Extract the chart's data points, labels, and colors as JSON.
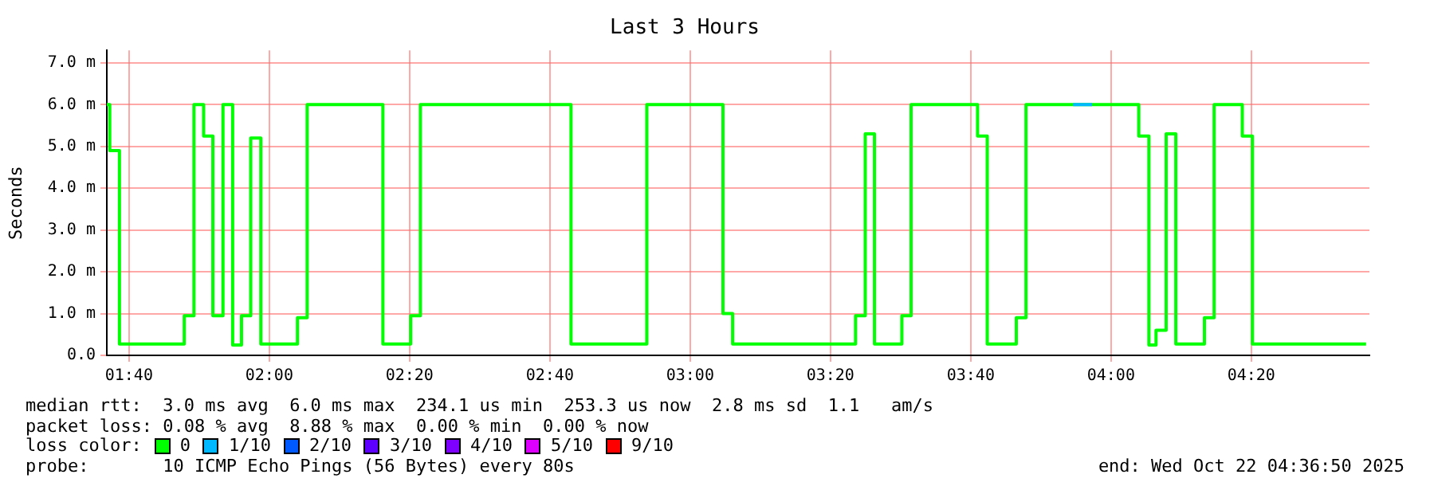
{
  "chart_data": {
    "type": "step",
    "title": "Last 3 Hours",
    "ylabel": "Seconds",
    "legend_title": "loss color:",
    "legend": "bottom",
    "grid": true,
    "line_style": "solid",
    "marker": "none",
    "xlim": [
      1.614,
      4.614
    ],
    "xticks": [
      {
        "value": 1.6667,
        "label": "01:40"
      },
      {
        "value": 2.0,
        "label": "02:00"
      },
      {
        "value": 2.3333,
        "label": "02:20"
      },
      {
        "value": 2.6667,
        "label": "02:40"
      },
      {
        "value": 3.0,
        "label": "03:00"
      },
      {
        "value": 3.3333,
        "label": "03:20"
      },
      {
        "value": 3.6667,
        "label": "03:40"
      },
      {
        "value": 4.0,
        "label": "04:00"
      },
      {
        "value": 4.3333,
        "label": "04:20"
      }
    ],
    "ylim": [
      0,
      7.3
    ],
    "yticks": [
      {
        "value": 0,
        "label": "0.0"
      },
      {
        "value": 1,
        "label": "1.0 m"
      },
      {
        "value": 2,
        "label": "2.0 m"
      },
      {
        "value": 3,
        "label": "3.0 m"
      },
      {
        "value": 4,
        "label": "4.0 m"
      },
      {
        "value": 5,
        "label": "5.0 m"
      },
      {
        "value": 6,
        "label": "6.0 m"
      },
      {
        "value": 7,
        "label": "7.0 m"
      }
    ],
    "series": [
      {
        "name": "0",
        "color": "#00ff00",
        "x": [
          1.614,
          1.621,
          1.644,
          1.798,
          1.821,
          1.844,
          1.866,
          1.89,
          1.913,
          1.934,
          1.956,
          1.98,
          2.067,
          2.09,
          2.27,
          2.336,
          2.359,
          2.717,
          2.897,
          3.078,
          3.101,
          3.393,
          3.416,
          3.438,
          3.503,
          3.525,
          3.683,
          3.706,
          3.775,
          3.798,
          3.91,
          3.955,
          4.066,
          4.09,
          4.107,
          4.131,
          4.154,
          4.222,
          4.245,
          4.312,
          4.336,
          4.606
        ],
        "values": [
          6.0,
          4.9,
          0.27,
          0.95,
          6.0,
          5.25,
          0.95,
          6.0,
          0.25,
          0.95,
          5.2,
          0.27,
          0.9,
          6.0,
          0.27,
          0.95,
          6.0,
          0.27,
          6.0,
          1.0,
          0.27,
          0.95,
          5.3,
          0.27,
          0.95,
          6.0,
          5.25,
          0.27,
          0.9,
          6.0,
          6.0,
          6.0,
          5.25,
          0.25,
          0.6,
          5.3,
          0.27,
          0.9,
          6.0,
          5.25,
          0.27,
          0.27
        ]
      },
      {
        "name": "1/10",
        "color": "#00b8ff",
        "x": [
          3.91,
          3.955
        ],
        "values": [
          6.0,
          6.0
        ]
      },
      {
        "name": "2/10",
        "color": "#0059ff"
      },
      {
        "name": "3/10",
        "color": "#5e00ff"
      },
      {
        "name": "4/10",
        "color": "#7e00ff"
      },
      {
        "name": "5/10",
        "color": "#dd00ff"
      },
      {
        "name": "9/10",
        "color": "#ff0000"
      }
    ],
    "annotations": [
      "median rtt:  3.0 ms avg  6.0 ms max  234.1 us min  253.3 us now  2.8 ms sd  1.1   am/s",
      "packet loss: 0.08 % avg  8.88 % max  0.00 % min  0.00 % now",
      "probe:       10 ICMP Echo Pings (56 Bytes) every 80s",
      "end: Wed Oct 22 04:36:50 2025"
    ]
  }
}
